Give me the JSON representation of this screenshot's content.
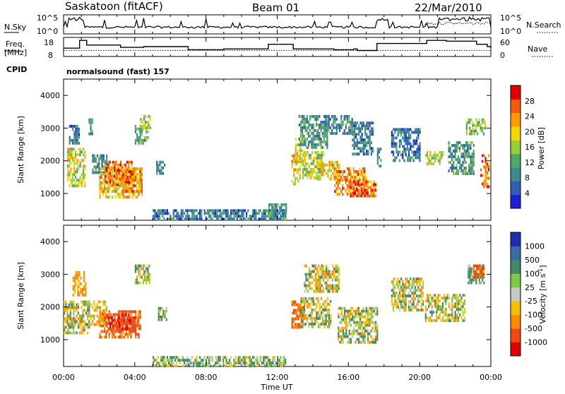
{
  "header": {
    "station": "Saskatoon (fitACF)",
    "beam": "Beam 01",
    "date": "22/Mar/2010"
  },
  "noise_panel": {
    "left_label": "N.Sky",
    "right_label": "N.Search",
    "left_ticks": [
      "10^5",
      "10^0"
    ],
    "right_ticks": [
      "10^5",
      "10^0"
    ]
  },
  "freq_panel": {
    "left_label_1": "Freq.",
    "left_label_2": "[MHz]",
    "right_label": "Nave",
    "left_ticks": [
      "18",
      "8"
    ],
    "right_ticks": [
      "60",
      "0"
    ],
    "cpid_label": "CPID",
    "program": "normalsound (fast) 157",
    "chart_data": {
      "type": "line",
      "series": [
        {
          "name": "Freq.",
          "x": [
            0.0,
            0.6,
            0.9,
            1.3,
            3.2,
            4.5,
            7.0,
            9.0,
            11.4,
            11.5,
            12.0,
            12.9,
            15.2,
            16.3,
            16.5,
            17.5,
            17.6,
            20.4,
            21.5,
            23.2,
            23.8,
            24.0
          ],
          "values": [
            12,
            12,
            17,
            14,
            12.5,
            13,
            11,
            11.5,
            11.5,
            14.5,
            14.5,
            11.5,
            11,
            11.5,
            10.5,
            10.5,
            15,
            17,
            16.5,
            14.5,
            13,
            12
          ]
        },
        {
          "name": "Nave",
          "x": [
            0,
            24
          ],
          "values": [
            20,
            20
          ]
        }
      ]
    }
  },
  "power_panel": {
    "ylabel": "Slant Range [km]",
    "yticks": [
      "4000",
      "3000",
      "2000",
      "1000"
    ],
    "colorbar_label": "Power [dB]",
    "colorbar_ticks": [
      "28",
      "24",
      "20",
      "16",
      "12",
      "8",
      "4"
    ],
    "colors": [
      "#1f1fd6",
      "#2e5fb4",
      "#3f8a8a",
      "#4fa86a",
      "#9acd3a",
      "#f5d700",
      "#ff9a00",
      "#f55a10",
      "#e00000"
    ],
    "chart_data": {
      "type": "heatmap",
      "xlabel": "Time UT",
      "ylabel": "Slant Range [km]",
      "xlim": [
        0,
        24
      ],
      "ylim": [
        180,
        4500
      ],
      "clim": [
        0,
        30
      ],
      "patches": [
        {
          "t": [
            0.2,
            1.2
          ],
          "r": [
            1200,
            2400
          ],
          "v": 16
        },
        {
          "t": [
            0.3,
            0.9
          ],
          "r": [
            2500,
            3100
          ],
          "v": 7
        },
        {
          "t": [
            1.4,
            1.6
          ],
          "r": [
            2800,
            3300
          ],
          "v": 10
        },
        {
          "t": [
            1.6,
            2.4
          ],
          "r": [
            1600,
            2200
          ],
          "v": 8
        },
        {
          "t": [
            2.0,
            4.4
          ],
          "r": [
            900,
            1800
          ],
          "v": 20
        },
        {
          "t": [
            2.3,
            3.8
          ],
          "r": [
            1300,
            2000
          ],
          "v": 25
        },
        {
          "t": [
            3.3,
            4.4
          ],
          "r": [
            1100,
            1800
          ],
          "v": 24
        },
        {
          "t": [
            4.0,
            4.7
          ],
          "r": [
            2500,
            3100
          ],
          "v": 11
        },
        {
          "t": [
            4.3,
            4.9
          ],
          "r": [
            3000,
            3400
          ],
          "v": 14
        },
        {
          "t": [
            5.2,
            5.7
          ],
          "r": [
            1600,
            2000
          ],
          "v": 8
        },
        {
          "t": [
            5.0,
            12.5
          ],
          "r": [
            200,
            520
          ],
          "v": 6
        },
        {
          "t": [
            11.5,
            12.5
          ],
          "r": [
            250,
            700
          ],
          "v": 9
        },
        {
          "t": [
            12.8,
            13.3
          ],
          "r": [
            1300,
            2200
          ],
          "v": 20
        },
        {
          "t": [
            13.0,
            13.6
          ],
          "r": [
            1900,
            2700
          ],
          "v": 18
        },
        {
          "t": [
            13.4,
            14.6
          ],
          "r": [
            1500,
            2300
          ],
          "v": 16
        },
        {
          "t": [
            13.2,
            14.8
          ],
          "r": [
            2400,
            3400
          ],
          "v": 9
        },
        {
          "t": [
            14.2,
            15.5
          ],
          "r": [
            1400,
            2000
          ],
          "v": 19
        },
        {
          "t": [
            14.6,
            16.2
          ],
          "r": [
            2800,
            3400
          ],
          "v": 8
        },
        {
          "t": [
            15.2,
            17.0
          ],
          "r": [
            1000,
            1800
          ],
          "v": 24
        },
        {
          "t": [
            16.2,
            17.4
          ],
          "r": [
            2200,
            3200
          ],
          "v": 7
        },
        {
          "t": [
            16.0,
            17.5
          ],
          "r": [
            900,
            1400
          ],
          "v": 26
        },
        {
          "t": [
            17.6,
            17.8
          ],
          "r": [
            1800,
            2400
          ],
          "v": 7
        },
        {
          "t": [
            18.4,
            20.0
          ],
          "r": [
            2000,
            3000
          ],
          "v": 6
        },
        {
          "t": [
            20.3,
            21.3
          ],
          "r": [
            1900,
            2300
          ],
          "v": 16
        },
        {
          "t": [
            21.6,
            23.0
          ],
          "r": [
            1600,
            2600
          ],
          "v": 9
        },
        {
          "t": [
            22.6,
            23.7
          ],
          "r": [
            2800,
            3300
          ],
          "v": 13
        },
        {
          "t": [
            23.4,
            23.9
          ],
          "r": [
            1200,
            2200
          ],
          "v": 25
        }
      ]
    }
  },
  "velocity_panel": {
    "ylabel": "Slant Range [km]",
    "yticks": [
      "4000",
      "3000",
      "2000",
      "1000"
    ],
    "colorbar_label": "Velocity [m s",
    "colorbar_label_sup": "-1",
    "colorbar_label_end": "]",
    "colorbar_ticks": [
      "1000",
      "500",
      "100",
      "25",
      "-25",
      "-100",
      "-500",
      "-1000"
    ],
    "colors": [
      "#1d2fb0",
      "#3a6aa8",
      "#3f8a6a",
      "#7fc84a",
      "#c8c8c0",
      "#f5c000",
      "#ff8a00",
      "#f04a10",
      "#e00000"
    ],
    "chart_data": {
      "type": "heatmap",
      "xlabel": "Time UT",
      "ylabel": "Slant Range [km]",
      "xlim": [
        0,
        24
      ],
      "ylim": [
        180,
        4500
      ],
      "clim": [
        -1000,
        1000
      ],
      "patches": [
        {
          "t": [
            0.0,
            1.4
          ],
          "r": [
            1200,
            2200
          ],
          "v": 0
        },
        {
          "t": [
            0.5,
            1.2
          ],
          "r": [
            2400,
            3100
          ],
          "v": -150
        },
        {
          "t": [
            1.5,
            2.4
          ],
          "r": [
            1500,
            2200
          ],
          "v": -80
        },
        {
          "t": [
            2.0,
            4.3
          ],
          "r": [
            1100,
            1900
          ],
          "v": -350
        },
        {
          "t": [
            2.4,
            4.0
          ],
          "r": [
            1300,
            1800
          ],
          "v": -700
        },
        {
          "t": [
            4.0,
            4.8
          ],
          "r": [
            2700,
            3300
          ],
          "v": 10
        },
        {
          "t": [
            5.3,
            5.8
          ],
          "r": [
            1600,
            2000
          ],
          "v": 60
        },
        {
          "t": [
            5.0,
            12.5
          ],
          "r": [
            200,
            500
          ],
          "v": 50
        },
        {
          "t": [
            12.8,
            13.5
          ],
          "r": [
            1400,
            2200
          ],
          "v": -300
        },
        {
          "t": [
            13.3,
            15.0
          ],
          "r": [
            1400,
            2300
          ],
          "v": 0
        },
        {
          "t": [
            13.5,
            15.5
          ],
          "r": [
            2500,
            3300
          ],
          "v": -40
        },
        {
          "t": [
            15.4,
            17.6
          ],
          "r": [
            900,
            2000
          ],
          "v": 0
        },
        {
          "t": [
            18.4,
            20.2
          ],
          "r": [
            1900,
            2900
          ],
          "v": 5
        },
        {
          "t": [
            20.3,
            22.5
          ],
          "r": [
            1600,
            2400
          ],
          "v": 0
        },
        {
          "t": [
            22.7,
            23.6
          ],
          "r": [
            2700,
            3300
          ],
          "v": 120
        },
        {
          "t": [
            23.0,
            23.6
          ],
          "r": [
            2900,
            3300
          ],
          "v": -400
        }
      ]
    }
  },
  "x_axis": {
    "ticks": [
      "00:00",
      "04:00",
      "08:00",
      "12:00",
      "16:00",
      "20:00",
      "00:00"
    ],
    "label": "Time UT"
  }
}
